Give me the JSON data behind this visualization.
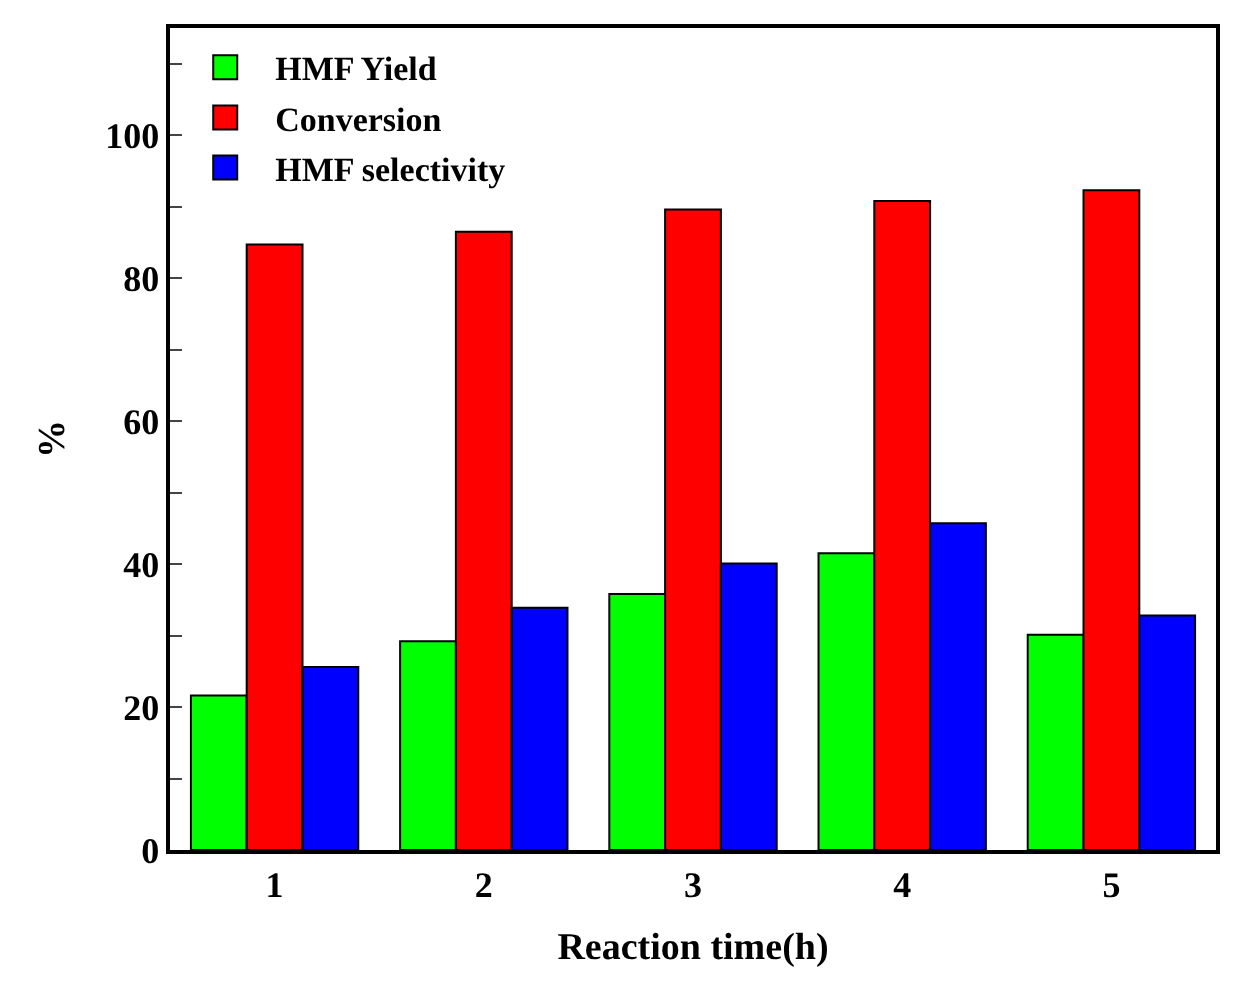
{
  "chart_data": {
    "type": "bar",
    "xlabel": "Reaction time(h)",
    "ylabel": "%",
    "categories": [
      "1",
      "2",
      "3",
      "4",
      "5"
    ],
    "series": [
      {
        "name": "HMF Yield",
        "color": "#00ff00",
        "values": [
          21.6,
          29.2,
          35.8,
          41.5,
          30.1
        ]
      },
      {
        "name": "Conversion",
        "color": "#ff0000",
        "values": [
          84.7,
          86.5,
          89.6,
          90.8,
          92.3
        ]
      },
      {
        "name": "HMF selectivity",
        "color": "#0000ff",
        "values": [
          25.6,
          33.9,
          40.1,
          45.7,
          32.8
        ]
      }
    ],
    "ylim": [
      0,
      115
    ],
    "yticks": [
      0,
      {
        "value": 10,
        "label": null
      },
      20,
      {
        "value": 30,
        "label": null
      },
      40,
      {
        "value": 50,
        "label": null
      },
      60,
      {
        "value": 70,
        "label": null
      },
      80,
      {
        "value": 90,
        "label": null
      },
      100,
      {
        "value": 110,
        "label": null
      }
    ],
    "legend": "top left"
  }
}
